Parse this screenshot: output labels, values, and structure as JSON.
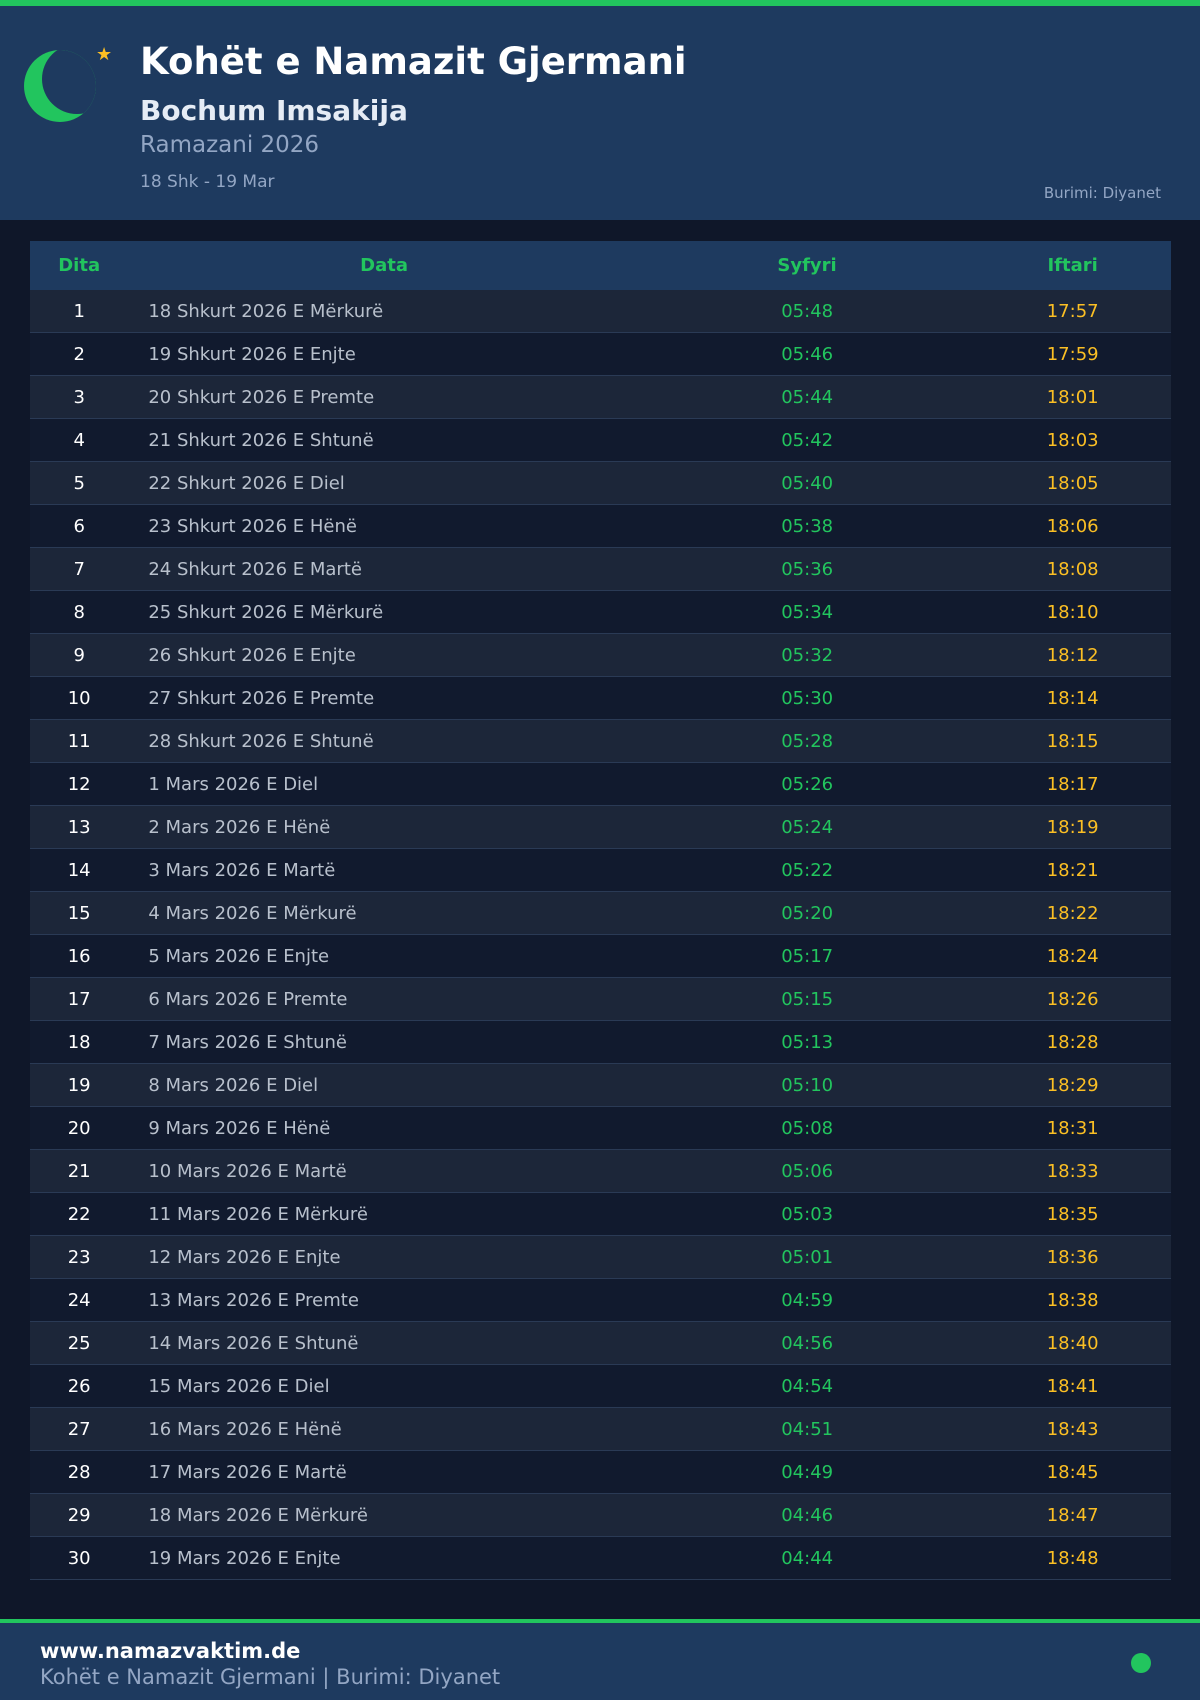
{
  "header": {
    "title": "Kohët e Namazit Gjermani",
    "subtitle": "Bochum Imsakija",
    "ramadan": "Ramazani 2026",
    "range": "18 Shk - 19 Mar",
    "source": "Burimi: Diyanet"
  },
  "colors": {
    "accent": "#22c55e",
    "iftar": "#fbbf24",
    "header_bg": "#1e3a5f",
    "page_bg": "#0f1729"
  },
  "table": {
    "columns": [
      "Dita",
      "Data",
      "Syfyri",
      "Iftari"
    ],
    "rows": [
      [
        "1",
        "18 Shkurt 2026 E Mërkurë",
        "05:48",
        "17:57"
      ],
      [
        "2",
        "19 Shkurt 2026 E Enjte",
        "05:46",
        "17:59"
      ],
      [
        "3",
        "20 Shkurt 2026 E Premte",
        "05:44",
        "18:01"
      ],
      [
        "4",
        "21 Shkurt 2026 E Shtunë",
        "05:42",
        "18:03"
      ],
      [
        "5",
        "22 Shkurt 2026 E Diel",
        "05:40",
        "18:05"
      ],
      [
        "6",
        "23 Shkurt 2026 E Hënë",
        "05:38",
        "18:06"
      ],
      [
        "7",
        "24 Shkurt 2026 E Martë",
        "05:36",
        "18:08"
      ],
      [
        "8",
        "25 Shkurt 2026 E Mërkurë",
        "05:34",
        "18:10"
      ],
      [
        "9",
        "26 Shkurt 2026 E Enjte",
        "05:32",
        "18:12"
      ],
      [
        "10",
        "27 Shkurt 2026 E Premte",
        "05:30",
        "18:14"
      ],
      [
        "11",
        "28 Shkurt 2026 E Shtunë",
        "05:28",
        "18:15"
      ],
      [
        "12",
        "1 Mars 2026 E Diel",
        "05:26",
        "18:17"
      ],
      [
        "13",
        "2 Mars 2026 E Hënë",
        "05:24",
        "18:19"
      ],
      [
        "14",
        "3 Mars 2026 E Martë",
        "05:22",
        "18:21"
      ],
      [
        "15",
        "4 Mars 2026 E Mërkurë",
        "05:20",
        "18:22"
      ],
      [
        "16",
        "5 Mars 2026 E Enjte",
        "05:17",
        "18:24"
      ],
      [
        "17",
        "6 Mars 2026 E Premte",
        "05:15",
        "18:26"
      ],
      [
        "18",
        "7 Mars 2026 E Shtunë",
        "05:13",
        "18:28"
      ],
      [
        "19",
        "8 Mars 2026 E Diel",
        "05:10",
        "18:29"
      ],
      [
        "20",
        "9 Mars 2026 E Hënë",
        "05:08",
        "18:31"
      ],
      [
        "21",
        "10 Mars 2026 E Martë",
        "05:06",
        "18:33"
      ],
      [
        "22",
        "11 Mars 2026 E Mërkurë",
        "05:03",
        "18:35"
      ],
      [
        "23",
        "12 Mars 2026 E Enjte",
        "05:01",
        "18:36"
      ],
      [
        "24",
        "13 Mars 2026 E Premte",
        "04:59",
        "18:38"
      ],
      [
        "25",
        "14 Mars 2026 E Shtunë",
        "04:56",
        "18:40"
      ],
      [
        "26",
        "15 Mars 2026 E Diel",
        "04:54",
        "18:41"
      ],
      [
        "27",
        "16 Mars 2026 E Hënë",
        "04:51",
        "18:43"
      ],
      [
        "28",
        "17 Mars 2026 E Martë",
        "04:49",
        "18:45"
      ],
      [
        "29",
        "18 Mars 2026 E Mërkurë",
        "04:46",
        "18:47"
      ],
      [
        "30",
        "19 Mars 2026 E Enjte",
        "04:44",
        "18:48"
      ]
    ]
  },
  "footer": {
    "site": "www.namazvaktim.de",
    "text": "Kohët e Namazit Gjermani | Burimi: Diyanet"
  }
}
